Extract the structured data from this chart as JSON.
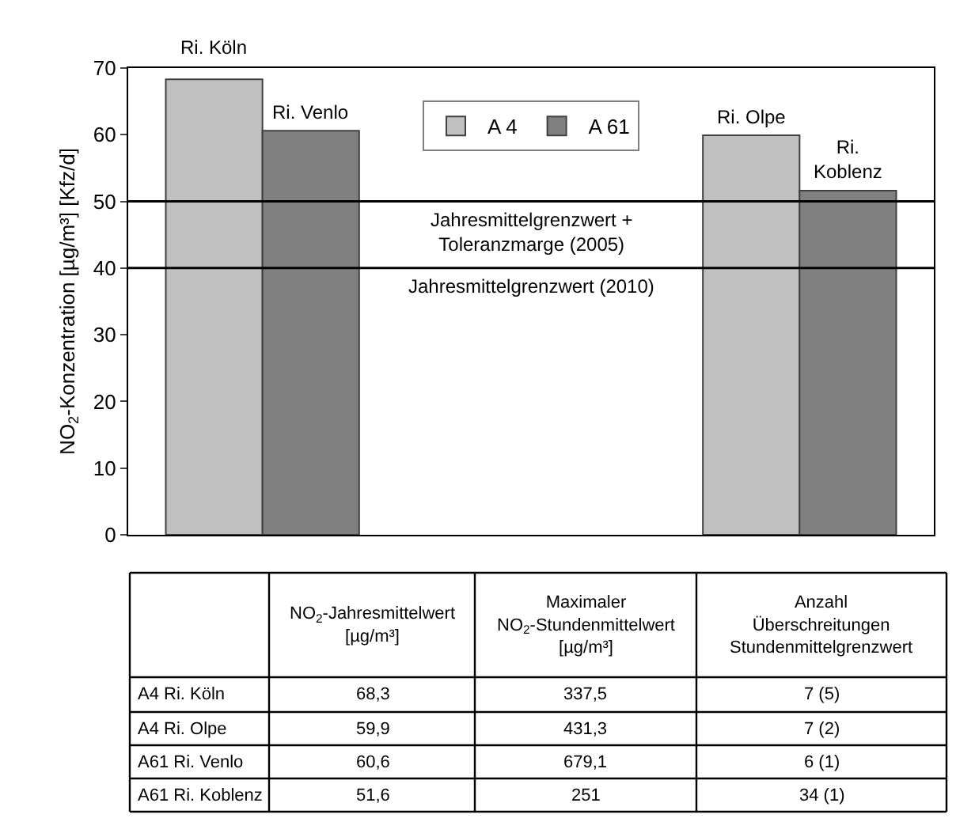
{
  "chart_data": {
    "type": "bar",
    "ylabel": "NO$_{2}$-Konzentration [µg/m³] [Kfz/d]",
    "categories": [
      null,
      null,
      null
    ],
    "series": [
      {
        "name": "A 4",
        "color": "#c0c0c0",
        "values": [
          68.3,
          null,
          59.9
        ],
        "value_labels": [
          "Ri. Köln",
          null,
          "Ri. Olpe"
        ]
      },
      {
        "name": "A 61",
        "color": "#808080",
        "values": [
          60.6,
          null,
          51.6
        ],
        "value_labels": [
          "Ri. Venlo",
          null,
          "Ri. Koblenz"
        ]
      }
    ],
    "ylim": [
      0,
      70
    ],
    "yticks": [
      0,
      10,
      20,
      30,
      40,
      50,
      60,
      70
    ],
    "grid": false,
    "legend": "top",
    "ref_lines": [
      {
        "axis": "y",
        "value": 50,
        "label": "Jahresmittelgrenzwert + Toleranzmarge (2005)",
        "color": "#000000"
      },
      {
        "axis": "y",
        "value": 40,
        "label": "Jahresmittelgrenzwert (2010)",
        "color": "#000000"
      }
    ],
    "annotations": [
      "NO$_{2}$-Jahresmittelwert [µg/m³]",
      "Maximaler NO$_{2}$-Stundenmittelwert [µg/m³]",
      "Anzahl Überschreitungen Stundenmittelgrenzwert",
      "A4 Ri. Köln",
      "68,3",
      "337,5",
      "7 (5)",
      "A4 Ri. Olpe",
      "59,9",
      "431,3",
      "7 (2)",
      "A61 Ri. Venlo",
      "60,6",
      "679,1",
      "6 (1)",
      "A61 Ri. Koblenz",
      "51,6",
      "251",
      "34 (1)"
    ]
  }
}
